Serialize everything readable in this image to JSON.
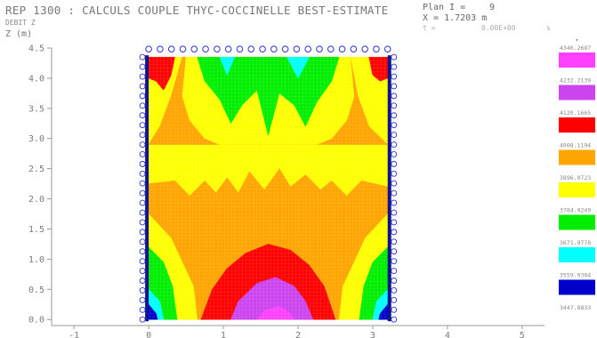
{
  "header": {
    "title": "REP 1300 : CALCULS COUPLE THYC-COCCINELLE BEST-ESTIMATE",
    "subtitle": "DEBIT Z",
    "plan_label": "Plan I =",
    "plan_value": "9",
    "x_readout": "X = 1.7203 m",
    "t_label": "t =",
    "t_value": "0.00E+00",
    "t_suffix": "s"
  },
  "chart_data": {
    "type": "heatmap",
    "title": "REP 1300 : CALCULS COUPLE THYC-COCCINELLE BEST-ESTIMATE",
    "subtitle": "DEBIT Z",
    "ylabel": "Z (m)",
    "xlabel": "",
    "xlim": [
      -1.3,
      5.3
    ],
    "ylim": [
      -0.1,
      4.5
    ],
    "x_ticks": [
      "-1",
      "0",
      "1",
      "2",
      "3",
      "4",
      "5"
    ],
    "y_ticks": [
      "0.0",
      "0.5",
      "1.0",
      "1.5",
      "2.0",
      "2.5",
      "3.0",
      "3.5",
      "4.0",
      "4.5"
    ],
    "domain": {
      "x": [
        0.0,
        3.2
      ],
      "y": [
        0.0,
        4.35
      ]
    },
    "legend": {
      "placement": "right",
      "bins": [
        {
          "label": "4346.2687",
          "color": "#ff40ff"
        },
        {
          "label": "4232.2139",
          "color": "#cc44ee"
        },
        {
          "label": "4120.1665",
          "color": "#ff0000"
        },
        {
          "label": "4008.1194",
          "color": "#ffa500"
        },
        {
          "label": "3896.0723",
          "color": "#ffff00"
        },
        {
          "label": "3784.0249",
          "color": "#00ee00"
        },
        {
          "label": "3671.9778",
          "color": "#00ffff"
        },
        {
          "label": "3559.9304",
          "color": "#0000cc"
        },
        {
          "label": "3447.8833",
          "color": ""
        }
      ]
    },
    "regions": [
      {
        "level": "yellow",
        "color": "#ffff00",
        "points": [
          [
            0,
            0
          ],
          [
            3.2,
            0
          ],
          [
            3.2,
            4.35
          ],
          [
            0,
            4.35
          ]
        ]
      },
      {
        "level": "orange-top",
        "color": "#ffa500",
        "points": [
          [
            0,
            2.9
          ],
          [
            0.15,
            3.2
          ],
          [
            0.3,
            3.7
          ],
          [
            0.45,
            4.35
          ],
          [
            2.7,
            4.35
          ],
          [
            2.8,
            3.7
          ],
          [
            2.95,
            3.2
          ],
          [
            3.2,
            2.9
          ]
        ]
      },
      {
        "level": "yellow-top",
        "color": "#ffff00",
        "points": [
          [
            0.5,
            4.35
          ],
          [
            0.45,
            3.7
          ],
          [
            0.55,
            3.3
          ],
          [
            0.75,
            3.0
          ],
          [
            0.95,
            2.9
          ],
          [
            2.25,
            2.9
          ],
          [
            2.45,
            3.0
          ],
          [
            2.65,
            3.3
          ],
          [
            2.75,
            3.7
          ],
          [
            2.7,
            4.35
          ]
        ]
      },
      {
        "level": "green-top",
        "color": "#00ee00",
        "points": [
          [
            0.65,
            4.35
          ],
          [
            0.75,
            3.95
          ],
          [
            0.95,
            3.65
          ],
          [
            1.1,
            3.25
          ],
          [
            1.25,
            3.55
          ],
          [
            1.45,
            3.8
          ],
          [
            1.6,
            3.05
          ],
          [
            1.75,
            3.75
          ],
          [
            1.95,
            3.55
          ],
          [
            2.1,
            3.2
          ],
          [
            2.25,
            3.6
          ],
          [
            2.45,
            3.95
          ],
          [
            2.55,
            4.35
          ]
        ]
      },
      {
        "level": "cyan-top-1",
        "color": "#00ffff",
        "points": [
          [
            0.95,
            4.35
          ],
          [
            1.05,
            4.05
          ],
          [
            1.15,
            4.35
          ]
        ]
      },
      {
        "level": "cyan-top-2",
        "color": "#00ffff",
        "points": [
          [
            1.85,
            4.35
          ],
          [
            2.0,
            4.0
          ],
          [
            2.15,
            4.35
          ]
        ]
      },
      {
        "level": "red-top-left",
        "color": "#ff0000",
        "points": [
          [
            0,
            4.35
          ],
          [
            0.35,
            4.35
          ],
          [
            0.3,
            4.05
          ],
          [
            0.2,
            3.8
          ],
          [
            0.1,
            3.95
          ],
          [
            0,
            4.0
          ]
        ]
      },
      {
        "level": "red-top-right",
        "color": "#ff0000",
        "points": [
          [
            2.95,
            4.35
          ],
          [
            3.2,
            4.35
          ],
          [
            3.2,
            4.0
          ],
          [
            3.1,
            3.95
          ],
          [
            3.0,
            4.05
          ]
        ]
      },
      {
        "level": "orange-mid",
        "color": "#ffa500",
        "points": [
          [
            0,
            0
          ],
          [
            0,
            2.25
          ],
          [
            0.35,
            2.3
          ],
          [
            0.55,
            2.05
          ],
          [
            0.75,
            2.3
          ],
          [
            0.9,
            2.1
          ],
          [
            1.05,
            2.35
          ],
          [
            1.2,
            2.1
          ],
          [
            1.35,
            2.45
          ],
          [
            1.55,
            2.15
          ],
          [
            1.75,
            2.5
          ],
          [
            1.9,
            2.2
          ],
          [
            2.1,
            2.4
          ],
          [
            2.3,
            2.15
          ],
          [
            2.45,
            2.3
          ],
          [
            2.65,
            2.05
          ],
          [
            2.85,
            2.3
          ],
          [
            3.2,
            2.2
          ],
          [
            3.2,
            0
          ]
        ]
      },
      {
        "level": "yellow-side-left",
        "color": "#ffff00",
        "points": [
          [
            0,
            0
          ],
          [
            0,
            1.75
          ],
          [
            0.3,
            1.35
          ],
          [
            0.45,
            0.95
          ],
          [
            0.6,
            0.55
          ],
          [
            0.65,
            0
          ]
        ]
      },
      {
        "level": "yellow-side-right",
        "color": "#ffff00",
        "points": [
          [
            3.2,
            0
          ],
          [
            3.2,
            1.75
          ],
          [
            2.9,
            1.35
          ],
          [
            2.75,
            0.95
          ],
          [
            2.6,
            0.55
          ],
          [
            2.55,
            0
          ]
        ]
      },
      {
        "level": "green-left",
        "color": "#00ee00",
        "points": [
          [
            0,
            0
          ],
          [
            0,
            1.2
          ],
          [
            0.2,
            0.95
          ],
          [
            0.32,
            0.55
          ],
          [
            0.38,
            0
          ]
        ]
      },
      {
        "level": "green-right",
        "color": "#00ee00",
        "points": [
          [
            3.2,
            0
          ],
          [
            3.2,
            1.2
          ],
          [
            3.0,
            0.95
          ],
          [
            2.88,
            0.55
          ],
          [
            2.82,
            0
          ]
        ]
      },
      {
        "level": "cyan-left",
        "color": "#00ffff",
        "points": [
          [
            0,
            0
          ],
          [
            0,
            0.5
          ],
          [
            0.15,
            0.3
          ],
          [
            0.2,
            0
          ]
        ]
      },
      {
        "level": "cyan-right",
        "color": "#00ffff",
        "points": [
          [
            3.2,
            0
          ],
          [
            3.2,
            0.5
          ],
          [
            3.05,
            0.3
          ],
          [
            3.0,
            0
          ]
        ]
      },
      {
        "level": "blue-left",
        "color": "#0000cc",
        "points": [
          [
            0,
            0
          ],
          [
            0,
            0.25
          ],
          [
            0.1,
            0.1
          ],
          [
            0.12,
            0
          ]
        ]
      },
      {
        "level": "blue-right",
        "color": "#0000cc",
        "points": [
          [
            3.2,
            0
          ],
          [
            3.2,
            0.25
          ],
          [
            3.1,
            0.1
          ],
          [
            3.08,
            0
          ]
        ]
      },
      {
        "level": "red-bottom",
        "color": "#ff0000",
        "points": [
          [
            0.7,
            0
          ],
          [
            0.85,
            0.5
          ],
          [
            1.05,
            0.85
          ],
          [
            1.3,
            1.1
          ],
          [
            1.6,
            1.25
          ],
          [
            1.9,
            1.15
          ],
          [
            2.15,
            0.9
          ],
          [
            2.35,
            0.55
          ],
          [
            2.5,
            0
          ]
        ]
      },
      {
        "level": "purple-bottom",
        "color": "#cc44ee",
        "points": [
          [
            1.1,
            0
          ],
          [
            1.2,
            0.3
          ],
          [
            1.45,
            0.6
          ],
          [
            1.7,
            0.7
          ],
          [
            1.95,
            0.55
          ],
          [
            2.1,
            0.3
          ],
          [
            2.2,
            0
          ]
        ]
      },
      {
        "level": "magenta-bottom",
        "color": "#ff40ff",
        "points": [
          [
            1.45,
            0
          ],
          [
            1.55,
            0.15
          ],
          [
            1.75,
            0.22
          ],
          [
            1.9,
            0.1
          ],
          [
            1.95,
            0
          ]
        ]
      }
    ],
    "top_markers_count": 22,
    "side_markers_count": 28,
    "grid": false
  }
}
